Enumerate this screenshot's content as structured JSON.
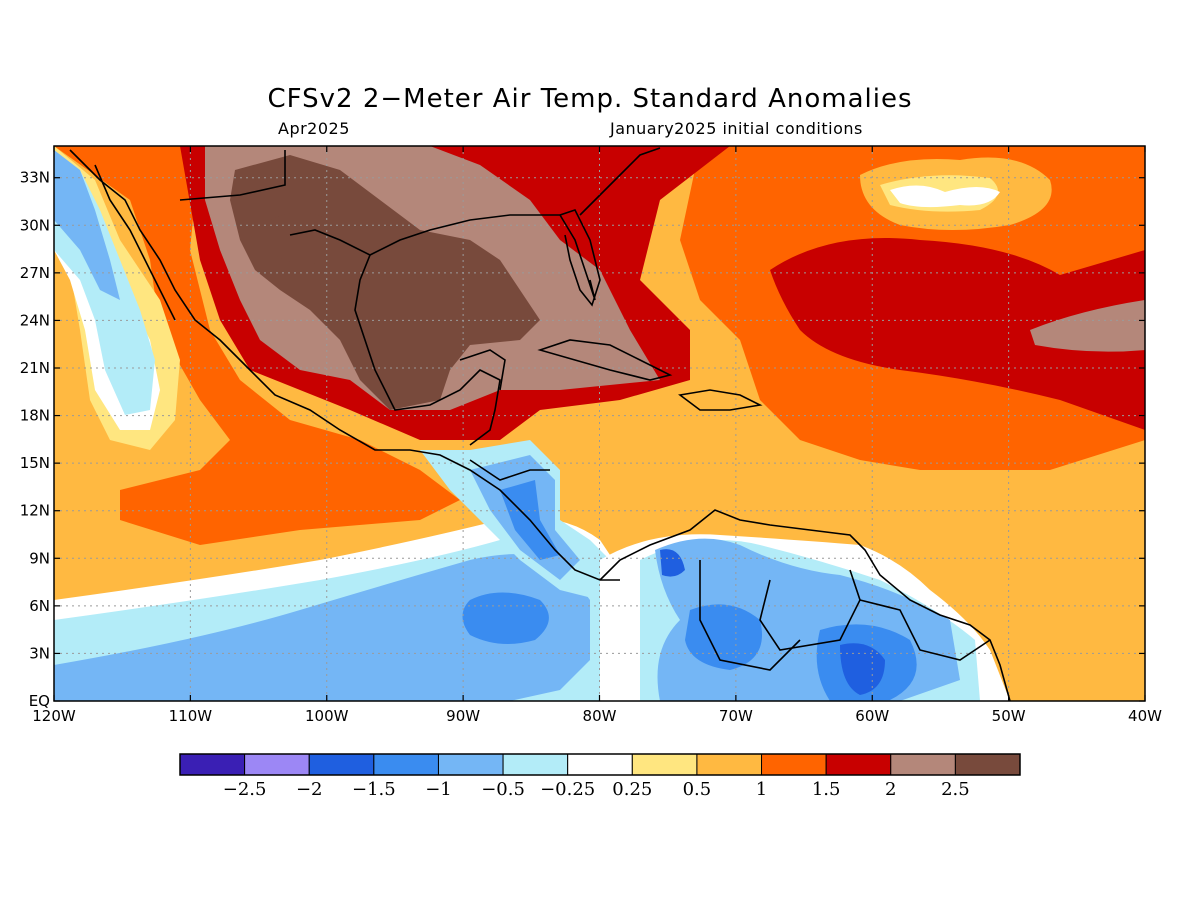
{
  "title": "CFSv2 2−Meter Air Temp. Standard Anomalies",
  "valid_period": "Apr2025",
  "initial_conditions": "January2025 initial conditions",
  "lat_labels": [
    "33N",
    "30N",
    "27N",
    "24N",
    "21N",
    "18N",
    "15N",
    "12N",
    "9N",
    "6N",
    "3N",
    "EQ"
  ],
  "lat_values": [
    33,
    30,
    27,
    24,
    21,
    18,
    15,
    12,
    9,
    6,
    3,
    0
  ],
  "lon_labels": [
    "120W",
    "110W",
    "100W",
    "90W",
    "80W",
    "70W",
    "60W",
    "50W",
    "40W"
  ],
  "lon_values": [
    -120,
    -110,
    -100,
    -90,
    -80,
    -70,
    -60,
    -50,
    -40
  ],
  "colorbar": {
    "colors": [
      "#3a1fb4",
      "#9c87f5",
      "#1f5fe0",
      "#3a8cf0",
      "#74b6f5",
      "#b3ecf8",
      "#ffffff",
      "#ffe680",
      "#ffb941",
      "#ff6400",
      "#c80000",
      "#b4877a",
      "#784a3c"
    ],
    "labels": [
      "−2.5",
      "−2",
      "−1.5",
      "−1",
      "−0.5",
      "−0.25",
      "0.25",
      "0.5",
      "1",
      "1.5",
      "2",
      "2.5"
    ]
  },
  "colors": {
    "neg_2_5": "#3a1fb4",
    "neg_2": "#9c87f5",
    "neg_1_5": "#1f5fe0",
    "neg_1": "#3a8cf0",
    "neg_0_5": "#74b6f5",
    "neg_0_25": "#b3ecf8",
    "neutral": "#ffffff",
    "pos_0_25": "#ffe680",
    "pos_0_5": "#ffb941",
    "pos_1": "#ff6400",
    "pos_1_5": "#c80000",
    "pos_2": "#b4877a",
    "pos_2_5": "#784a3c",
    "coastline": "#000000",
    "grid": "#9a9a9a"
  }
}
